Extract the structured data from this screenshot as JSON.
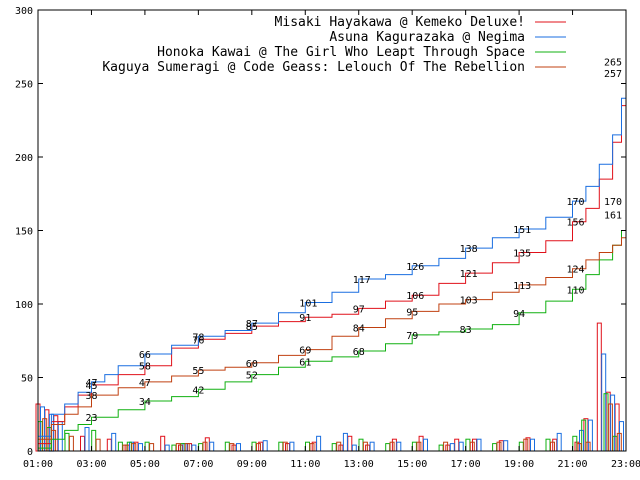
{
  "chart_data": {
    "type": "line",
    "title": "",
    "xlabel": "",
    "ylabel": "",
    "ylim": [
      0,
      300
    ],
    "xlim": [
      "01:00",
      "23:00"
    ],
    "grid": false,
    "legend_position": "top-right",
    "x_tick_labels": [
      "01:00",
      "03:00",
      "05:00",
      "07:00",
      "09:00",
      "11:00",
      "13:00",
      "15:00",
      "17:00",
      "19:00",
      "21:00",
      "23:00"
    ],
    "y_tick_labels": [
      "0",
      "50",
      "100",
      "150",
      "200",
      "250",
      "300"
    ],
    "series": [
      {
        "name": "Misaki Hayakawa @ Kemeko Deluxe!",
        "color": "#e0101a",
        "x": [
          "01:00",
          "01:30",
          "02:00",
          "02:30",
          "03:00",
          "04:00",
          "05:00",
          "06:00",
          "07:00",
          "08:00",
          "09:00",
          "10:00",
          "11:00",
          "12:00",
          "13:00",
          "14:00",
          "15:00",
          "16:00",
          "17:00",
          "18:00",
          "19:00",
          "20:00",
          "21:00",
          "21:30",
          "22:00",
          "22:30",
          "22:50",
          "23:00"
        ],
        "values": [
          5,
          20,
          30,
          38,
          45,
          52,
          58,
          70,
          76,
          80,
          85,
          88,
          91,
          93,
          97,
          102,
          106,
          114,
          121,
          128,
          135,
          143,
          156,
          165,
          185,
          210,
          235,
          265
        ],
        "annotations": [
          {
            "x": "03:00",
            "y": 45,
            "label": "45"
          },
          {
            "x": "05:00",
            "y": 58,
            "label": "58"
          },
          {
            "x": "07:00",
            "y": 76,
            "label": "76"
          },
          {
            "x": "09:00",
            "y": 85,
            "label": "85"
          },
          {
            "x": "11:00",
            "y": 91,
            "label": "91"
          },
          {
            "x": "13:00",
            "y": 97,
            "label": "97"
          },
          {
            "x": "15:00",
            "y": 106,
            "label": "106"
          },
          {
            "x": "17:00",
            "y": 121,
            "label": "121"
          },
          {
            "x": "19:00",
            "y": 135,
            "label": "135"
          },
          {
            "x": "21:00",
            "y": 156,
            "label": "156"
          },
          {
            "x": "23:00",
            "y": 265,
            "label": "265"
          }
        ]
      },
      {
        "name": "Asuna Kagurazaka @ Negima",
        "color": "#1a6ee0",
        "x": [
          "01:00",
          "01:30",
          "02:00",
          "02:30",
          "03:00",
          "03:30",
          "04:00",
          "05:00",
          "06:00",
          "07:00",
          "08:00",
          "09:00",
          "10:00",
          "11:00",
          "12:00",
          "13:00",
          "14:00",
          "15:00",
          "16:00",
          "17:00",
          "18:00",
          "19:00",
          "20:00",
          "21:00",
          "21:30",
          "22:00",
          "22:30",
          "22:50",
          "23:00"
        ],
        "values": [
          10,
          25,
          32,
          40,
          47,
          52,
          58,
          66,
          72,
          78,
          82,
          87,
          94,
          101,
          108,
          117,
          120,
          126,
          131,
          138,
          145,
          151,
          159,
          170,
          180,
          195,
          215,
          240,
          257
        ],
        "annotations": [
          {
            "x": "03:00",
            "y": 47,
            "label": "47"
          },
          {
            "x": "05:00",
            "y": 66,
            "label": "66"
          },
          {
            "x": "07:00",
            "y": 78,
            "label": "78"
          },
          {
            "x": "09:00",
            "y": 87,
            "label": "87"
          },
          {
            "x": "11:00",
            "y": 101,
            "label": "101"
          },
          {
            "x": "13:00",
            "y": 117,
            "label": "117"
          },
          {
            "x": "15:00",
            "y": 126,
            "label": "126"
          },
          {
            "x": "17:00",
            "y": 138,
            "label": "138"
          },
          {
            "x": "19:00",
            "y": 151,
            "label": "151"
          },
          {
            "x": "21:00",
            "y": 170,
            "label": "170"
          },
          {
            "x": "23:00",
            "y": 257,
            "label": "257"
          }
        ]
      },
      {
        "name": "Honoka Kawai @ The Girl Who Leapt Through Space",
        "color": "#10b010",
        "x": [
          "01:00",
          "01:30",
          "02:00",
          "02:30",
          "03:00",
          "04:00",
          "05:00",
          "06:00",
          "07:00",
          "08:00",
          "09:00",
          "10:00",
          "11:00",
          "12:00",
          "13:00",
          "14:00",
          "15:00",
          "16:00",
          "17:00",
          "18:00",
          "19:00",
          "20:00",
          "21:00",
          "21:30",
          "22:00",
          "22:30",
          "22:50",
          "23:00"
        ],
        "values": [
          2,
          8,
          14,
          18,
          23,
          28,
          34,
          37,
          42,
          47,
          52,
          57,
          61,
          64,
          68,
          73,
          79,
          81,
          83,
          86,
          94,
          102,
          110,
          120,
          130,
          140,
          150,
          170
        ],
        "annotations": [
          {
            "x": "03:00",
            "y": 23,
            "label": "23"
          },
          {
            "x": "05:00",
            "y": 34,
            "label": "34"
          },
          {
            "x": "07:00",
            "y": 42,
            "label": "42"
          },
          {
            "x": "09:00",
            "y": 52,
            "label": "52"
          },
          {
            "x": "11:00",
            "y": 61,
            "label": "61"
          },
          {
            "x": "13:00",
            "y": 68,
            "label": "68"
          },
          {
            "x": "15:00",
            "y": 79,
            "label": "79"
          },
          {
            "x": "17:00",
            "y": 83,
            "label": "83"
          },
          {
            "x": "19:00",
            "y": 94,
            "label": "94"
          },
          {
            "x": "21:00",
            "y": 110,
            "label": "110"
          },
          {
            "x": "23:00",
            "y": 170,
            "label": "170"
          }
        ]
      },
      {
        "name": "Kaguya Sumeragi @ Code Geass: Lelouch Of The Rebellion",
        "color": "#c04010",
        "x": [
          "01:00",
          "01:30",
          "02:00",
          "02:30",
          "03:00",
          "04:00",
          "05:00",
          "06:00",
          "07:00",
          "08:00",
          "09:00",
          "10:00",
          "11:00",
          "12:00",
          "13:00",
          "14:00",
          "15:00",
          "16:00",
          "17:00",
          "18:00",
          "19:00",
          "20:00",
          "21:00",
          "21:30",
          "22:00",
          "22:30",
          "22:50",
          "23:00"
        ],
        "values": [
          8,
          18,
          25,
          30,
          38,
          43,
          47,
          51,
          55,
          57,
          60,
          65,
          69,
          78,
          84,
          90,
          95,
          100,
          103,
          108,
          113,
          118,
          124,
          130,
          135,
          140,
          145,
          161
        ],
        "annotations": [
          {
            "x": "03:00",
            "y": 38,
            "label": "38"
          },
          {
            "x": "05:00",
            "y": 47,
            "label": "47"
          },
          {
            "x": "07:00",
            "y": 55,
            "label": "55"
          },
          {
            "x": "09:00",
            "y": 60,
            "label": "60"
          },
          {
            "x": "11:00",
            "y": 69,
            "label": "69"
          },
          {
            "x": "13:00",
            "y": 84,
            "label": "84"
          },
          {
            "x": "15:00",
            "y": 95,
            "label": "95"
          },
          {
            "x": "17:00",
            "y": 103,
            "label": "103"
          },
          {
            "x": "19:00",
            "y": 113,
            "label": "113"
          },
          {
            "x": "21:00",
            "y": 124,
            "label": "124"
          },
          {
            "x": "23:00",
            "y": 161,
            "label": "161"
          }
        ]
      }
    ],
    "bar_series": [
      {
        "name": "Misaki Hayakawa @ Kemeko Deluxe!",
        "color": "#e0101a",
        "x": [
          "01:00",
          "01:20",
          "01:40",
          "02:40",
          "03:40",
          "04:20",
          "04:40",
          "05:40",
          "06:20",
          "06:40",
          "07:20",
          "08:20",
          "09:20",
          "10:20",
          "11:20",
          "12:20",
          "12:40",
          "13:20",
          "14:20",
          "15:20",
          "16:20",
          "16:40",
          "17:20",
          "18:20",
          "19:20",
          "20:20",
          "21:10",
          "21:30",
          "22:00",
          "22:20",
          "22:40"
        ],
        "values": [
          32,
          28,
          24,
          10,
          8,
          4,
          6,
          10,
          4,
          5,
          9,
          4,
          6,
          5,
          6,
          4,
          10,
          4,
          8,
          10,
          4,
          8,
          8,
          7,
          9,
          8,
          6,
          22,
          87,
          40,
          32
        ]
      },
      {
        "name": "Asuna Kagurazaka @ Negima",
        "color": "#1a6ee0",
        "x": [
          "01:10",
          "01:30",
          "01:50",
          "02:50",
          "03:50",
          "04:30",
          "04:50",
          "05:50",
          "06:30",
          "06:50",
          "07:30",
          "08:30",
          "09:30",
          "10:30",
          "11:30",
          "12:30",
          "12:50",
          "13:30",
          "14:30",
          "15:30",
          "16:30",
          "16:50",
          "17:30",
          "18:30",
          "19:30",
          "20:30",
          "21:20",
          "21:40",
          "22:10",
          "22:30",
          "22:50"
        ],
        "values": [
          30,
          25,
          20,
          16,
          12,
          6,
          5,
          4,
          5,
          4,
          6,
          5,
          7,
          6,
          10,
          12,
          4,
          6,
          6,
          8,
          5,
          6,
          8,
          7,
          8,
          12,
          14,
          21,
          66,
          38,
          20
        ]
      },
      {
        "name": "Honoka Kawai @ The Girl Who Leapt Through Space",
        "color": "#10b010",
        "x": [
          "01:05",
          "01:25",
          "02:05",
          "03:05",
          "04:05",
          "04:25",
          "05:05",
          "06:05",
          "06:25",
          "07:05",
          "08:05",
          "09:05",
          "10:05",
          "11:05",
          "12:05",
          "13:05",
          "14:05",
          "15:05",
          "16:05",
          "17:05",
          "18:05",
          "19:05",
          "20:05",
          "21:05",
          "21:25",
          "22:15",
          "22:35"
        ],
        "values": [
          20,
          16,
          12,
          14,
          6,
          6,
          6,
          4,
          5,
          5,
          6,
          6,
          6,
          6,
          5,
          8,
          5,
          6,
          4,
          8,
          5,
          6,
          8,
          10,
          21,
          39,
          10
        ]
      },
      {
        "name": "Kaguya Sumeragi @ Code Geass: Lelouch Of The Rebellion",
        "color": "#c04010",
        "x": [
          "01:15",
          "01:35",
          "02:15",
          "03:15",
          "04:15",
          "04:35",
          "05:15",
          "06:15",
          "06:35",
          "07:15",
          "08:15",
          "09:15",
          "10:15",
          "11:15",
          "12:15",
          "13:15",
          "14:15",
          "15:15",
          "16:15",
          "17:15",
          "18:15",
          "19:15",
          "20:15",
          "21:15",
          "21:35",
          "22:25",
          "22:45"
        ],
        "values": [
          22,
          14,
          10,
          8,
          4,
          5,
          5,
          5,
          5,
          6,
          5,
          5,
          6,
          5,
          6,
          6,
          6,
          6,
          6,
          6,
          6,
          8,
          6,
          5,
          6,
          32,
          12
        ]
      }
    ]
  }
}
